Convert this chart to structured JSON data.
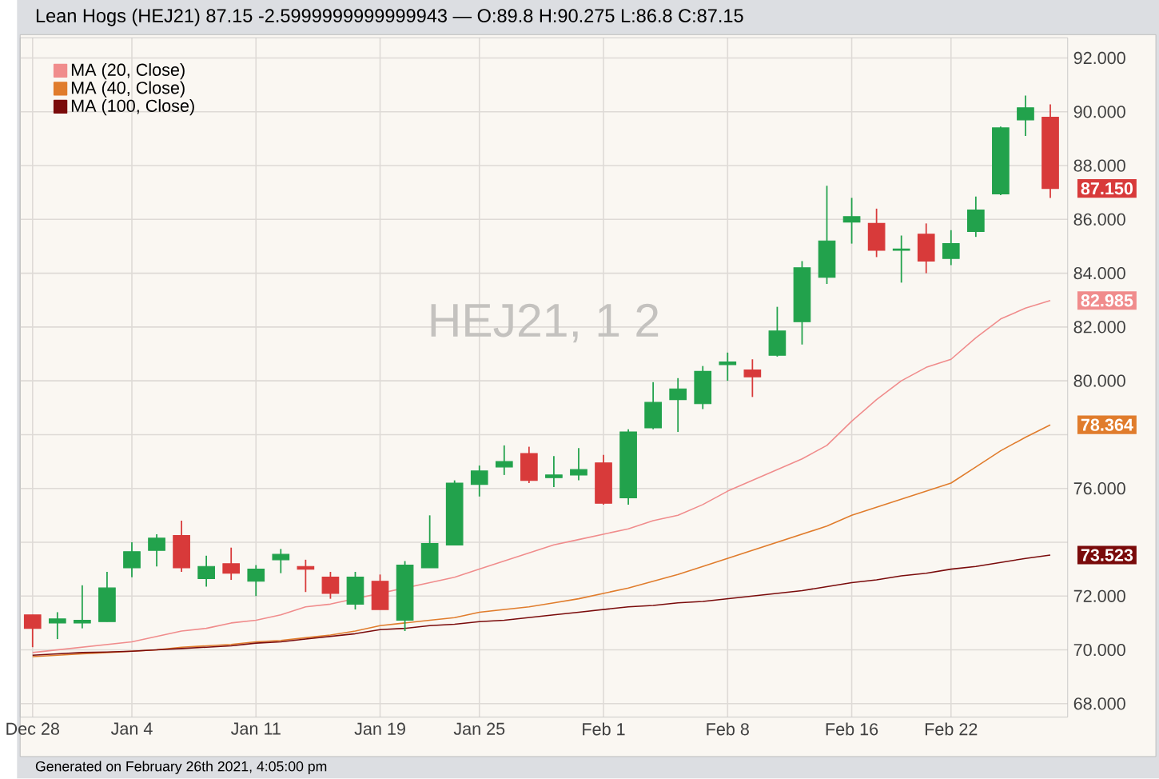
{
  "chart_data": {
    "type": "candlestick",
    "title": "Lean Hogs (HEJ21) 87.15 -2.5999999999999943 — O:89.8 H:90.275 L:86.8 C:87.15",
    "categories": [
      "Dec 28",
      null,
      null,
      null,
      "Jan 4",
      null,
      null,
      null,
      null,
      "Jan 11",
      null,
      null,
      null,
      null,
      "Jan 19",
      null,
      null,
      null,
      "Jan 25",
      null,
      null,
      null,
      null,
      "Feb 1",
      null,
      null,
      null,
      null,
      "Feb 8",
      null,
      null,
      null,
      null,
      "Feb 16",
      null,
      null,
      null,
      "Feb 22",
      null,
      null,
      null,
      null
    ],
    "ohlc": [
      [
        71.3,
        71.3,
        70.1,
        70.8
      ],
      [
        71.0,
        71.4,
        70.4,
        71.15
      ],
      [
        71.0,
        72.4,
        70.8,
        71.1
      ],
      [
        71.05,
        72.9,
        71.05,
        72.3
      ],
      [
        73.05,
        74.0,
        72.7,
        73.65
      ],
      [
        73.7,
        74.3,
        73.1,
        74.15
      ],
      [
        74.25,
        74.8,
        72.9,
        73.05
      ],
      [
        72.65,
        73.5,
        72.35,
        73.1
      ],
      [
        73.2,
        73.8,
        72.6,
        72.85
      ],
      [
        72.55,
        73.15,
        72.0,
        73.0
      ],
      [
        73.35,
        73.75,
        72.85,
        73.55
      ],
      [
        73.1,
        73.35,
        72.15,
        73.0
      ],
      [
        72.7,
        72.9,
        71.9,
        72.1
      ],
      [
        71.7,
        72.9,
        71.5,
        72.7
      ],
      [
        72.55,
        72.8,
        71.5,
        71.5
      ],
      [
        71.1,
        73.3,
        70.7,
        73.15
      ],
      [
        73.05,
        75.0,
        73.05,
        73.95
      ],
      [
        73.9,
        76.3,
        73.9,
        76.2
      ],
      [
        76.15,
        76.85,
        75.7,
        76.65
      ],
      [
        76.8,
        77.6,
        76.5,
        77.0
      ],
      [
        77.3,
        77.55,
        76.2,
        76.3
      ],
      [
        76.4,
        77.2,
        76.05,
        76.5
      ],
      [
        76.5,
        77.5,
        76.3,
        76.7
      ],
      [
        76.95,
        77.25,
        75.4,
        75.45
      ],
      [
        75.65,
        78.2,
        75.4,
        78.1
      ],
      [
        78.25,
        79.95,
        78.2,
        79.2
      ],
      [
        79.3,
        80.1,
        78.1,
        79.7
      ],
      [
        79.15,
        80.55,
        78.95,
        80.35
      ],
      [
        80.6,
        81.05,
        80.0,
        80.7
      ],
      [
        80.4,
        80.8,
        79.4,
        80.15
      ],
      [
        80.95,
        82.75,
        80.9,
        81.85
      ],
      [
        82.2,
        84.45,
        81.35,
        84.2
      ],
      [
        83.85,
        87.25,
        83.6,
        85.2
      ],
      [
        85.9,
        86.8,
        85.1,
        86.1
      ],
      [
        85.85,
        86.4,
        84.6,
        84.85
      ],
      [
        84.85,
        85.4,
        83.65,
        84.9
      ],
      [
        85.45,
        85.85,
        84.0,
        84.45
      ],
      [
        84.55,
        85.6,
        84.3,
        85.1
      ],
      [
        85.55,
        86.85,
        85.35,
        86.35
      ],
      [
        86.95,
        89.45,
        86.9,
        89.4
      ],
      [
        89.7,
        90.6,
        89.1,
        90.15
      ],
      [
        89.8,
        90.275,
        86.8,
        87.15
      ]
    ],
    "colors": [
      "#d83a3a",
      "#22a24c",
      "#22a24c",
      "#22a24c",
      "#22a24c",
      "#22a24c",
      "#d83a3a",
      "#22a24c",
      "#d83a3a",
      "#22a24c",
      "#22a24c",
      "#d83a3a",
      "#d83a3a",
      "#22a24c",
      "#d83a3a",
      "#22a24c",
      "#22a24c",
      "#22a24c",
      "#22a24c",
      "#22a24c",
      "#d83a3a",
      "#22a24c",
      "#22a24c",
      "#d83a3a",
      "#22a24c",
      "#22a24c",
      "#22a24c",
      "#22a24c",
      "#22a24c",
      "#d83a3a",
      "#22a24c",
      "#22a24c",
      "#22a24c",
      "#22a24c",
      "#d83a3a",
      "#22a24c",
      "#d83a3a",
      "#22a24c",
      "#22a24c",
      "#22a24c",
      "#22a24c",
      "#d83a3a"
    ],
    "series": [
      {
        "name": "MA (20, Close)",
        "type": "line",
        "color": "#f08c8c",
        "values": [
          69.9,
          70.0,
          70.1,
          70.2,
          70.3,
          70.5,
          70.7,
          70.8,
          71.0,
          71.1,
          71.3,
          71.6,
          71.7,
          null,
          null,
          null,
          72.5,
          72.7,
          73.0,
          73.3,
          73.6,
          73.9,
          74.1,
          74.3,
          74.5,
          74.8,
          75.0,
          75.4,
          75.9,
          76.3,
          76.7,
          77.1,
          77.6,
          78.5,
          79.3,
          80.0,
          80.5,
          80.8,
          81.6,
          82.3,
          82.7,
          82.985
        ],
        "value_labels": [
          null,
          null,
          null,
          null,
          null,
          null,
          null,
          null,
          null,
          null,
          null,
          null,
          null,
          null,
          null,
          null,
          null,
          null,
          null,
          null,
          null,
          null,
          null,
          null,
          null,
          null,
          null,
          null,
          null,
          null,
          null,
          null,
          null,
          null,
          null,
          null,
          null,
          null,
          null,
          null,
          null,
          "82.985"
        ]
      },
      {
        "name": "MA (40, Close)",
        "type": "line",
        "color": "#e07c2c",
        "values": [
          69.75,
          69.8,
          69.85,
          69.9,
          69.95,
          70.0,
          70.1,
          70.15,
          70.2,
          70.3,
          70.35,
          70.45,
          70.55,
          70.7,
          70.9,
          71.0,
          71.1,
          71.2,
          71.4,
          71.5,
          71.6,
          71.75,
          71.9,
          72.1,
          72.3,
          72.55,
          72.8,
          73.1,
          73.4,
          73.7,
          74.0,
          74.3,
          74.6,
          75.0,
          75.3,
          75.6,
          75.9,
          76.2,
          76.8,
          77.4,
          77.9,
          78.364
        ],
        "value_labels": [
          null,
          null,
          null,
          null,
          null,
          null,
          null,
          null,
          null,
          null,
          null,
          null,
          null,
          null,
          null,
          null,
          null,
          null,
          null,
          null,
          null,
          null,
          null,
          null,
          null,
          null,
          null,
          null,
          null,
          null,
          null,
          null,
          null,
          null,
          null,
          null,
          null,
          null,
          null,
          null,
          null,
          "78.364"
        ]
      },
      {
        "name": "MA (100, Close)",
        "type": "line",
        "color": "#7a0b0b",
        "values": [
          69.8,
          69.85,
          69.9,
          69.92,
          69.95,
          70.0,
          70.05,
          70.1,
          70.15,
          70.25,
          70.3,
          70.4,
          70.5,
          70.6,
          70.75,
          70.8,
          70.9,
          70.95,
          71.05,
          71.1,
          71.2,
          71.3,
          71.4,
          71.5,
          71.6,
          71.65,
          71.75,
          71.8,
          71.9,
          72.0,
          72.1,
          72.2,
          72.35,
          72.5,
          72.6,
          72.75,
          72.85,
          73.0,
          73.1,
          73.25,
          73.4,
          73.523
        ],
        "value_labels": [
          null,
          null,
          null,
          null,
          null,
          null,
          null,
          null,
          null,
          null,
          null,
          null,
          null,
          null,
          null,
          null,
          null,
          null,
          null,
          null,
          null,
          null,
          null,
          null,
          null,
          null,
          null,
          null,
          null,
          null,
          null,
          null,
          null,
          null,
          null,
          null,
          null,
          null,
          null,
          null,
          null,
          "73.523"
        ]
      }
    ],
    "ylim": [
      67.5,
      92.75
    ],
    "yticks": [
      {
        "value": 68,
        "label": "68.000"
      },
      {
        "value": 70,
        "label": "70.000"
      },
      {
        "value": 72,
        "label": "72.000"
      },
      {
        "value": 74,
        "label": null
      },
      {
        "value": 76,
        "label": "76.000"
      },
      {
        "value": 78,
        "label": null
      },
      {
        "value": 80,
        "label": "80.000"
      },
      {
        "value": 82,
        "label": "82.000"
      },
      {
        "value": 84,
        "label": "84.000"
      },
      {
        "value": 86,
        "label": "86.000"
      },
      {
        "value": 88,
        "label": "88.000"
      },
      {
        "value": 90,
        "label": "90.000"
      },
      {
        "value": 92,
        "label": "92.000"
      }
    ],
    "grid": true,
    "legend": "top left",
    "annotations": [
      "HEJ21, 1 2",
      "Generated on February 26th 2021, 4:05:00 pm",
      "87.150"
    ]
  }
}
